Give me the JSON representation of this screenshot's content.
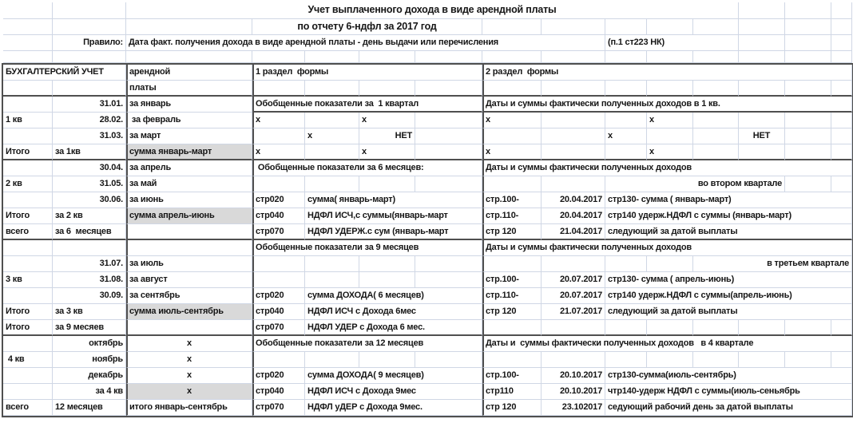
{
  "colors": {
    "grid_line": "#d0d7e5",
    "section_border": "#4f4f4f",
    "shaded_cell": "#d9d9d9",
    "text": "#161616",
    "background": "#ffffff"
  },
  "columns": [
    62,
    92,
    158,
    66,
    68,
    70,
    84,
    74,
    80,
    52,
    58,
    57,
    58,
    58,
    26
  ],
  "top_rows": [
    {
      "h": 21,
      "cells": [
        [
          3,
          10,
          "Учет выплаченного дохода в виде арендной платы",
          "c",
          "t",
          "sheet-title"
        ]
      ]
    },
    {
      "h": 20,
      "cells": [
        [
          4,
          4,
          "по отчету 6-ндфл за 2017 год",
          "c",
          "t",
          "sheet-subtitle"
        ]
      ]
    },
    {
      "h": 20,
      "cells": [
        [
          2,
          1,
          "Правило:",
          "r",
          null,
          "rule-label"
        ],
        [
          3,
          7,
          "Дата факт. получения дохода в виде арендной платы - день выдачи или перечисления",
          "l",
          null,
          "rule-text"
        ],
        [
          10,
          3,
          "(п.1 ст223 НК)",
          "l",
          null,
          "rule-ref"
        ]
      ]
    },
    {
      "h": 15,
      "cells": []
    }
  ],
  "main_rows": [
    {
      "cells": [
        [
          1,
          2,
          "БУХГАЛТЕРСКИЙ УЧЕТ",
          "l",
          null,
          "header-accounting"
        ],
        [
          3,
          1,
          "арендной",
          "l",
          null,
          "header-rent-line1"
        ],
        [
          4,
          4,
          "1 раздел  формы",
          "l",
          null,
          "section1-header"
        ],
        [
          8,
          8,
          "2 раздел  формы",
          "l",
          null,
          "section2-header"
        ]
      ]
    },
    {
      "hb": true,
      "cells": [
        [
          3,
          1,
          "платы",
          "l",
          null,
          "header-rent-line2"
        ]
      ]
    },
    {
      "hbFrom": 4,
      "cells": [
        [
          2,
          1,
          "31.01.",
          "r"
        ],
        [
          3,
          1,
          "за январь",
          "l"
        ],
        [
          4,
          4,
          "Обобщенные показатели за  1 квартал",
          "l",
          null,
          "q1-summary-header"
        ],
        [
          8,
          8,
          "Даты и суммы фактически полученных доходов в 1 кв.",
          "l",
          null,
          "q1-dates-header"
        ]
      ]
    },
    {
      "cells": [
        [
          1,
          1,
          "1 кв",
          "l"
        ],
        [
          2,
          1,
          "28.02.",
          "r"
        ],
        [
          3,
          1,
          " за февраль",
          "l"
        ],
        [
          4,
          1,
          "x",
          "l"
        ],
        [
          6,
          1,
          "x",
          "l"
        ],
        [
          8,
          1,
          "x",
          "l"
        ],
        [
          11,
          1,
          "x",
          "l"
        ]
      ]
    },
    {
      "cells": [
        [
          2,
          1,
          "31.03.",
          "r"
        ],
        [
          3,
          1,
          "за март",
          "l"
        ],
        [
          5,
          1,
          "x",
          "l"
        ],
        [
          6,
          1,
          "НЕТ",
          "r"
        ],
        [
          10,
          1,
          "x",
          "l"
        ],
        [
          13,
          1,
          "НЕТ",
          "c"
        ]
      ]
    },
    {
      "hb": true,
      "cells": [
        [
          1,
          1,
          "Итого",
          "l"
        ],
        [
          2,
          1,
          "за 1кв",
          "l"
        ],
        [
          3,
          1,
          "сумма январь-март",
          "l",
          "s"
        ],
        [
          4,
          1,
          "x",
          "l"
        ],
        [
          6,
          1,
          "x",
          "l"
        ],
        [
          8,
          1,
          "x",
          "l"
        ],
        [
          11,
          1,
          "x",
          "l"
        ]
      ]
    },
    {
      "cells": [
        [
          2,
          1,
          "30.04.",
          "r"
        ],
        [
          3,
          1,
          "за апрель",
          "l"
        ],
        [
          4,
          4,
          " Обобщенные показатели за 6 месяцев:",
          "l",
          null,
          "h6-summary-header"
        ],
        [
          8,
          8,
          "Даты и суммы фактически полученных доходов",
          "l",
          null,
          "q2-dates-header"
        ]
      ]
    },
    {
      "cells": [
        [
          1,
          1,
          "2 кв",
          "l"
        ],
        [
          2,
          1,
          "31.05.",
          "r"
        ],
        [
          3,
          1,
          "за май",
          "l"
        ],
        [
          10,
          4,
          "во втором квартале",
          "r"
        ]
      ]
    },
    {
      "cells": [
        [
          2,
          1,
          "30.06.",
          "r"
        ],
        [
          3,
          1,
          "за июнь",
          "l"
        ],
        [
          4,
          1,
          "стр020",
          "l"
        ],
        [
          5,
          3,
          "сумма( январь-март)",
          "l"
        ],
        [
          8,
          1,
          "стр.100-",
          "l"
        ],
        [
          9,
          1,
          "20.04.2017",
          "r"
        ],
        [
          10,
          6,
          "стр130- сумма ( январь-март)",
          "l"
        ]
      ]
    },
    {
      "cells": [
        [
          1,
          1,
          "Итого",
          "l"
        ],
        [
          2,
          1,
          "за 2 кв",
          "l"
        ],
        [
          3,
          1,
          "сумма апрель-июнь",
          "l",
          "s"
        ],
        [
          4,
          1,
          "стр040",
          "l"
        ],
        [
          5,
          3,
          "НДФЛ ИСЧ,с суммы(январь-март",
          "l"
        ],
        [
          8,
          1,
          "стр.110-",
          "l"
        ],
        [
          9,
          1,
          "20.04.2017",
          "r"
        ],
        [
          10,
          6,
          "стр140 удерж.НДФЛ с суммы (январь-март)",
          "l"
        ]
      ]
    },
    {
      "hb": true,
      "cells": [
        [
          1,
          1,
          "всего",
          "l"
        ],
        [
          2,
          1,
          "за 6  месяцев",
          "l"
        ],
        [
          4,
          1,
          "стр070",
          "l"
        ],
        [
          5,
          3,
          "НДФЛ УДЕРЖ.с сум (январь-март",
          "l"
        ],
        [
          8,
          1,
          "стр 120",
          "l"
        ],
        [
          9,
          1,
          "21.04.2017",
          "r"
        ],
        [
          10,
          6,
          "следующий за датой выплаты",
          "l"
        ]
      ]
    },
    {
      "cells": [
        [
          4,
          4,
          "Обобщенные показатели за 9 месяцев",
          "l",
          null,
          "m9-summary-header"
        ],
        [
          8,
          8,
          "Даты и суммы фактически полученных доходов",
          "l",
          null,
          "q3-dates-header"
        ]
      ]
    },
    {
      "cells": [
        [
          2,
          1,
          "31.07.",
          "r"
        ],
        [
          3,
          1,
          "за июль",
          "l"
        ],
        [
          12,
          4,
          "в третьем квартале",
          "r"
        ]
      ]
    },
    {
      "cells": [
        [
          1,
          1,
          "3 кв",
          "l"
        ],
        [
          2,
          1,
          "31.08.",
          "r"
        ],
        [
          3,
          1,
          "за август",
          "l"
        ],
        [
          8,
          1,
          "стр.100-",
          "l"
        ],
        [
          9,
          1,
          "20.07.2017",
          "r"
        ],
        [
          10,
          6,
          "стр130- сумма ( апрель-июнь)",
          "l"
        ]
      ]
    },
    {
      "cells": [
        [
          2,
          1,
          "30.09.",
          "r"
        ],
        [
          3,
          1,
          "за сентябрь",
          "l"
        ],
        [
          4,
          1,
          "стр020",
          "l"
        ],
        [
          5,
          3,
          "сумма ДОХОДА( 6 месяцев)",
          "l"
        ],
        [
          8,
          1,
          "стр.110-",
          "l"
        ],
        [
          9,
          1,
          "20.07.2017",
          "r"
        ],
        [
          10,
          6,
          "стр140 удерж.НДФЛ с суммы(апрель-июнь)",
          "l"
        ]
      ]
    },
    {
      "cells": [
        [
          1,
          1,
          "Итого",
          "l"
        ],
        [
          2,
          1,
          "за 3 кв",
          "l"
        ],
        [
          3,
          1,
          "сумма июль-сентябрь",
          "l",
          "s"
        ],
        [
          4,
          1,
          "стр040",
          "l"
        ],
        [
          5,
          3,
          "НДФЛ ИСЧ с Дохода 6мес",
          "l"
        ],
        [
          8,
          1,
          "стр 120",
          "l"
        ],
        [
          9,
          1,
          "21.07.2017",
          "r"
        ],
        [
          10,
          6,
          "следующий за датой выплаты",
          "l"
        ]
      ]
    },
    {
      "hb": true,
      "cells": [
        [
          1,
          1,
          "Итого",
          "l"
        ],
        [
          2,
          1,
          "за 9 месяев",
          "l"
        ],
        [
          4,
          1,
          "стр070",
          "l"
        ],
        [
          5,
          3,
          "НДФЛ УДЕР с Дохода 6 мес.",
          "l"
        ]
      ]
    },
    {
      "cells": [
        [
          2,
          1,
          "октябрь",
          "r"
        ],
        [
          3,
          1,
          "x",
          "c"
        ],
        [
          4,
          4,
          "Обобщенные показатели за 12 месяцев",
          "l",
          null,
          "m12-summary-header"
        ],
        [
          8,
          8,
          "Даты и  суммы фактически полученных доходов   в 4 квартале",
          "l",
          null,
          "q4-dates-header"
        ]
      ]
    },
    {
      "cells": [
        [
          1,
          1,
          " 4 кв",
          "l"
        ],
        [
          2,
          1,
          "ноябрь",
          "r"
        ],
        [
          3,
          1,
          "x",
          "c"
        ]
      ]
    },
    {
      "cells": [
        [
          2,
          1,
          "декабрь",
          "r"
        ],
        [
          3,
          1,
          "x",
          "c"
        ],
        [
          4,
          1,
          "стр020",
          "l"
        ],
        [
          5,
          3,
          "сумма ДОХОДА( 9 месяцев)",
          "l"
        ],
        [
          8,
          1,
          "стр.100-",
          "l"
        ],
        [
          9,
          1,
          "20.10.2017",
          "r"
        ],
        [
          10,
          6,
          "стр130-сумма(июль-сентябрь)",
          "l"
        ]
      ]
    },
    {
      "cells": [
        [
          2,
          1,
          "за 4 кв",
          "r"
        ],
        [
          3,
          1,
          "x",
          "c",
          "s"
        ],
        [
          4,
          1,
          "стр040",
          "l"
        ],
        [
          5,
          3,
          "НДФЛ ИСЧ с Дохода 9мес",
          "l"
        ],
        [
          8,
          1,
          "стр110",
          "l"
        ],
        [
          9,
          1,
          "20.10.2017",
          "r"
        ],
        [
          10,
          6,
          "чтр140-удерж НДФЛ с суммы(июль-сеньябрь",
          "l"
        ]
      ]
    },
    {
      "cells": [
        [
          1,
          1,
          "всего",
          "l"
        ],
        [
          2,
          1,
          "12 месяцев",
          "l"
        ],
        [
          3,
          1,
          "итого январь-сентябрь",
          "l"
        ],
        [
          4,
          1,
          "стр070",
          "l"
        ],
        [
          5,
          3,
          "НДФЛ уДЕР с Дохода 9мес.",
          "l"
        ],
        [
          8,
          1,
          "стр 120",
          "l"
        ],
        [
          9,
          1,
          "23.102017",
          "r"
        ],
        [
          10,
          6,
          "седующий рабочий день за датой выплаты",
          "l"
        ]
      ]
    }
  ]
}
